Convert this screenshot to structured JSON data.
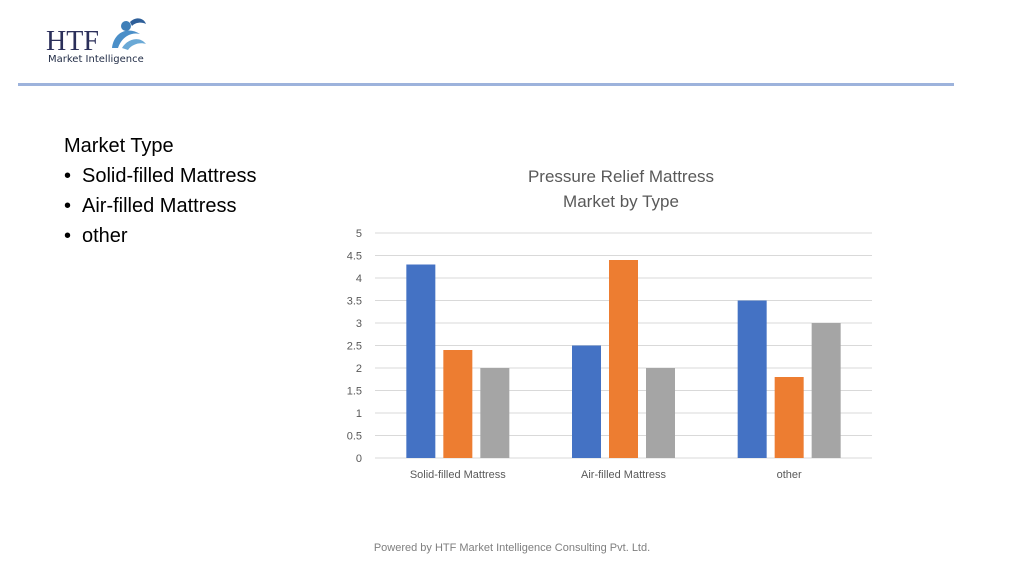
{
  "logo": {
    "mark": "HTF",
    "subtitle": "Market Intelligence"
  },
  "bullets": {
    "heading": "Market Type",
    "items": [
      "Solid-filled Mattress",
      "Air-filled Mattress",
      "other"
    ]
  },
  "footer": "Powered by HTF Market Intelligence Consulting Pvt. Ltd.",
  "colors": {
    "series1": "#4472c4",
    "series2": "#ed7d31",
    "series3": "#a5a5a5",
    "rule": "#9db3dc"
  },
  "chart_data": {
    "type": "bar",
    "title": "Pressure Relief Mattress Market by Type",
    "title_lines": [
      "Pressure Relief Mattress",
      "Market by Type"
    ],
    "categories": [
      "Solid-filled Mattress",
      "Air-filled Mattress",
      "other"
    ],
    "series": [
      {
        "values": [
          4.3,
          2.5,
          3.5
        ],
        "color": "#4472c4"
      },
      {
        "values": [
          2.4,
          4.4,
          1.8
        ],
        "color": "#ed7d31"
      },
      {
        "values": [
          2.0,
          2.0,
          3.0
        ],
        "color": "#a5a5a5"
      }
    ],
    "ylim": [
      0,
      5
    ],
    "yticks": [
      "0",
      "0.5",
      "1",
      "1.5",
      "2",
      "2.5",
      "3",
      "3.5",
      "4",
      "4.5",
      "5"
    ],
    "grid": true,
    "legend": "none"
  }
}
